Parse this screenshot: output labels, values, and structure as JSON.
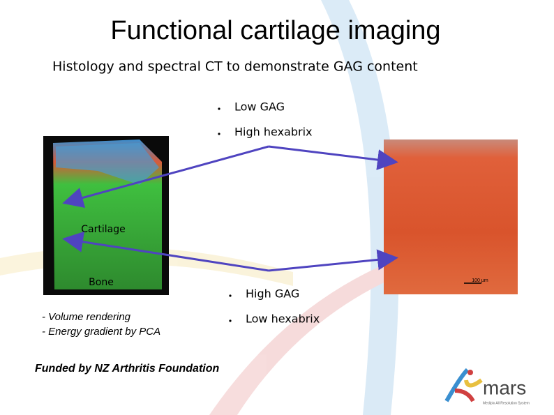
{
  "title": "Functional cartilage imaging",
  "subtitle": "Histology and spectral CT to demonstrate GAG content",
  "bullets_top": [
    "Low GAG",
    "High hexabrix"
  ],
  "bullets_bottom": [
    "High GAG",
    "Low hexabrix"
  ],
  "ct_image": {
    "labels": [
      "Cartilage",
      "Bone"
    ]
  },
  "method_notes": [
    "- Volume rendering",
    "- Energy gradient by PCA"
  ],
  "histology": {
    "scale_bar": "100 µm"
  },
  "funding": "Funded by NZ Arthritis Foundation",
  "logo": {
    "name": "mars",
    "tagline": "Medipix All Resolution System"
  }
}
